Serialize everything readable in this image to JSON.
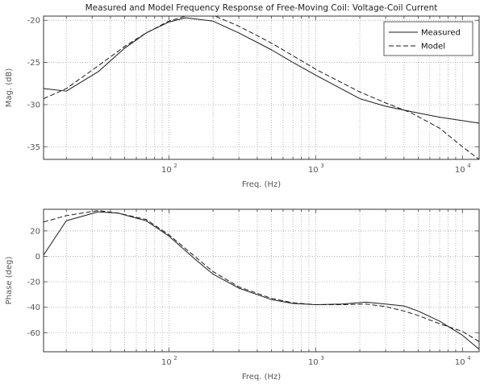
{
  "chart_data": [
    {
      "type": "line",
      "title": "Measured and Model Frequency Response of Free-Moving Coil: Voltage-Coil Current",
      "xlabel": "Freq. (Hz)",
      "ylabel": "Mag. (dB)",
      "xscale": "log",
      "xlim": [
        14,
        13000
      ],
      "ylim": [
        -36.5,
        -19.5
      ],
      "y_ticks": [
        -35,
        -30,
        -25,
        -20
      ],
      "y_tick_labels": [
        "-35",
        "-30",
        "-25",
        "-20"
      ],
      "x_ticks": [
        100,
        1000,
        10000
      ],
      "x_tick_labels": [
        {
          "base": "10",
          "exp": "2"
        },
        {
          "base": "10",
          "exp": "3"
        },
        {
          "base": "10",
          "exp": "4"
        }
      ],
      "grid": true,
      "legend_position": "top-right",
      "series": [
        {
          "name": "Measured",
          "style": "solid",
          "x": [
            14,
            20,
            33,
            50,
            70,
            100,
            130,
            200,
            300,
            500,
            700,
            1000,
            2000,
            3000,
            5000,
            7000,
            10000,
            13000
          ],
          "y": [
            -28.1,
            -28.4,
            -26.1,
            -23.3,
            -21.5,
            -20.2,
            -19.7,
            -20.1,
            -21.5,
            -23.5,
            -25.0,
            -26.5,
            -29.3,
            -30.2,
            -31.0,
            -31.5,
            -31.9,
            -32.2
          ]
        },
        {
          "name": "Model",
          "style": "dashed",
          "x": [
            14,
            20,
            33,
            50,
            70,
            100,
            130,
            200,
            300,
            500,
            700,
            1000,
            2000,
            3000,
            4500,
            7000,
            10000,
            13000
          ],
          "y": [
            -29.3,
            -28.1,
            -25.4,
            -23.1,
            -21.5,
            -20.1,
            -19.5,
            -19.4,
            -20.7,
            -22.7,
            -24.2,
            -25.8,
            -28.5,
            -29.8,
            -31.0,
            -32.8,
            -35.0,
            -36.5
          ]
        }
      ]
    },
    {
      "type": "line",
      "xlabel": "Freq. (Hz)",
      "ylabel": "Phase (deg)",
      "xscale": "log",
      "xlim": [
        14,
        13000
      ],
      "ylim": [
        -75,
        37
      ],
      "y_ticks": [
        -60,
        -40,
        -20,
        0,
        20
      ],
      "y_tick_labels": [
        "-60",
        "-40",
        "-20",
        "0",
        "20"
      ],
      "x_ticks": [
        100,
        1000,
        10000
      ],
      "x_tick_labels": [
        {
          "base": "10",
          "exp": "2"
        },
        {
          "base": "10",
          "exp": "3"
        },
        {
          "base": "10",
          "exp": "4"
        }
      ],
      "grid": true,
      "series": [
        {
          "name": "Measured",
          "style": "solid",
          "x": [
            14,
            20,
            33,
            45,
            70,
            100,
            150,
            200,
            300,
            500,
            700,
            1000,
            1500,
            2200,
            3000,
            4000,
            5000,
            7000,
            10000,
            13000
          ],
          "y": [
            1,
            28,
            35,
            34,
            28,
            16,
            -2,
            -14,
            -25,
            -34,
            -37,
            -38,
            -37.5,
            -36,
            -37.5,
            -39,
            -43,
            -51,
            -62,
            -73
          ]
        },
        {
          "name": "Model",
          "style": "dashed",
          "x": [
            14,
            20,
            33,
            45,
            70,
            100,
            150,
            200,
            300,
            500,
            700,
            1000,
            1500,
            2200,
            3000,
            4000,
            5000,
            7000,
            10000,
            13000
          ],
          "y": [
            27,
            32,
            36,
            34,
            29,
            17,
            0,
            -12,
            -24,
            -33,
            -36.5,
            -38,
            -38,
            -37.5,
            -39.5,
            -43,
            -46.5,
            -53,
            -59,
            -67
          ]
        }
      ]
    }
  ]
}
